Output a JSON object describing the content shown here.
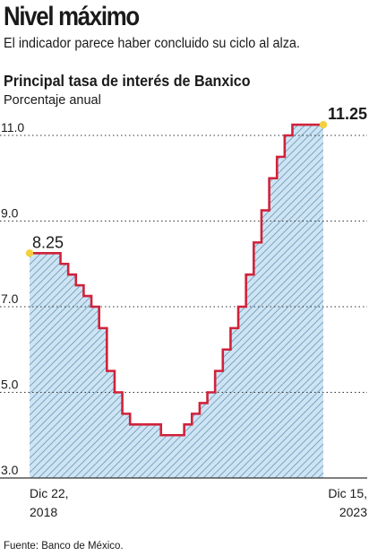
{
  "headline": "Nivel máximo",
  "dek": "El indicador parece haber concluido su ciclo al alza.",
  "source": "Fuente: Banco de México.",
  "colors": {
    "line": "#d0223a",
    "fill": "#cfe4f2",
    "hatch": "#6f9fc4",
    "marker": "#f4d03f",
    "grid": "#333333"
  },
  "chart_data": {
    "type": "area",
    "title": "Principal tasa de interés de Banxico",
    "subtitle": "Porcentaje anual",
    "ylim": [
      3.0,
      11.75
    ],
    "yticks": [
      3.0,
      5.0,
      7.0,
      9.0,
      11.0
    ],
    "ytick_labels": [
      "3.0",
      "5.0",
      "7.0",
      "9.0",
      "11.0"
    ],
    "grid": "horizontal-dotted",
    "x_labels": [
      {
        "line1": "Dic 22,",
        "line2": "2018"
      },
      {
        "line1": "Dic 15,",
        "line2": "2023"
      }
    ],
    "series": [
      {
        "step": "post",
        "values": [
          8.25,
          8.25,
          8.25,
          8.25,
          8.0,
          7.75,
          7.5,
          7.25,
          7.0,
          6.5,
          5.5,
          5.0,
          4.5,
          4.25,
          4.25,
          4.25,
          4.25,
          4.0,
          4.0,
          4.0,
          4.25,
          4.5,
          4.75,
          5.0,
          5.5,
          6.0,
          6.5,
          7.0,
          7.75,
          8.5,
          9.25,
          10.0,
          10.5,
          11.0,
          11.25,
          11.25,
          11.25,
          11.25,
          11.25
        ]
      }
    ],
    "annotations": [
      {
        "label": "8.25",
        "value": 8.25,
        "position": "start"
      },
      {
        "label": "11.25",
        "value": 11.25,
        "position": "end",
        "bold": true
      }
    ]
  }
}
